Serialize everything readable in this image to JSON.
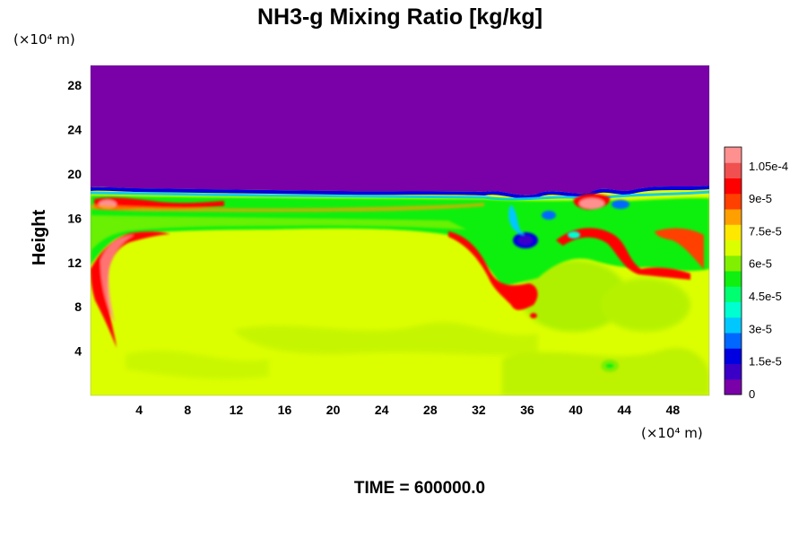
{
  "chart_data": {
    "type": "heatmap",
    "title": "NH3-g Mixing Ratio [kg/kg]",
    "ylabel": "Height",
    "xlabel": "",
    "x_unit": "(×10⁴ m)",
    "y_unit": "(×10⁴ m)",
    "xlim": [
      0,
      51
    ],
    "ylim": [
      0,
      29.8
    ],
    "x_ticks": [
      "4",
      "8",
      "12",
      "16",
      "20",
      "24",
      "28",
      "32",
      "36",
      "40",
      "44",
      "48"
    ],
    "y_ticks": [
      "4",
      "8",
      "12",
      "16",
      "20",
      "24",
      "28"
    ],
    "colorbar": {
      "min": 0,
      "max": 0.000114,
      "tick_values": [
        0,
        1.5e-05,
        3e-05,
        4.5e-05,
        6e-05,
        7.5e-05,
        9e-05,
        0.000105
      ],
      "tick_labels": [
        "0",
        "1.5e-5",
        "3e-5",
        "4.5e-5",
        "6e-5",
        "7.5e-5",
        "9e-5",
        "1.05e-4"
      ],
      "colors": [
        "#7a00a8",
        "#3a00c8",
        "#0000e0",
        "#0068ff",
        "#00c8ff",
        "#00ffd0",
        "#00ff70",
        "#10f010",
        "#80f000",
        "#dcff00",
        "#ffe800",
        "#ffa000",
        "#ff4000",
        "#ff0000",
        "#f05050",
        "#ff9090"
      ]
    },
    "field": {
      "upper_layer_value": 0,
      "upper_layer_base_y": 18.6,
      "lower_layer_value": 7.7e-05,
      "band_y_range": [
        14.8,
        18.4
      ],
      "band_value": 5.8e-05,
      "high_value": 0.000108
    },
    "time_label": "TIME = 600000.0"
  }
}
